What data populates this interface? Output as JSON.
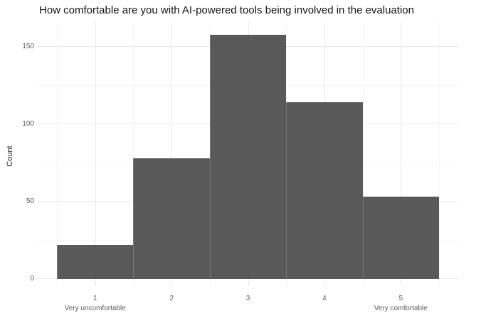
{
  "chart_data": {
    "type": "bar",
    "subtype": "histogram",
    "title": "How comfortable are you with AI-powered tools being involved in the evaluation",
    "categories": [
      "1",
      "2",
      "3",
      "4",
      "5"
    ],
    "values": [
      22,
      78,
      158,
      114,
      53
    ],
    "xlabel": "",
    "ylabel": "Count",
    "yticks": [
      0,
      50,
      100,
      150
    ],
    "yticks_minor": [
      25,
      75,
      125
    ],
    "ylim": [
      0,
      166
    ],
    "xlim": [
      0.5,
      5.5
    ],
    "x_secondary_labels": [
      {
        "at": "1",
        "label": "Very uncomfortable"
      },
      {
        "at": "5",
        "label": "Very comfortable"
      }
    ],
    "bar_color": "#595959",
    "grid_major_color": "#e9e9e9",
    "grid_minor_color": "#f5f5f5",
    "background_color": "#ffffff",
    "legend_position": "none",
    "grid": "on"
  }
}
